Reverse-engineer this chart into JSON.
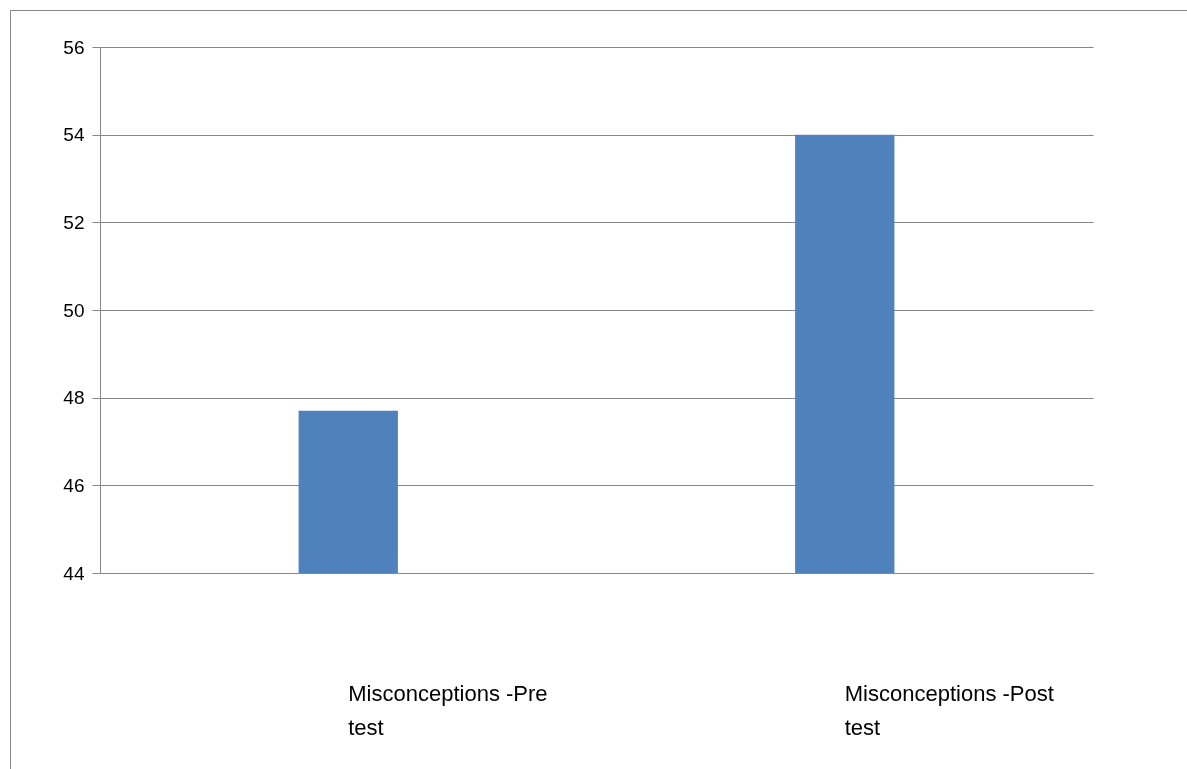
{
  "chart_data": {
    "type": "bar",
    "categories": [
      "Misconceptions -Pre test",
      "Misconceptions -Post test"
    ],
    "values": [
      47.7,
      54.0
    ],
    "color": "#4f81bd",
    "ylim": [
      44,
      56
    ],
    "yticks": [
      44,
      46,
      48,
      50,
      52,
      54,
      56
    ],
    "grid": "y"
  }
}
